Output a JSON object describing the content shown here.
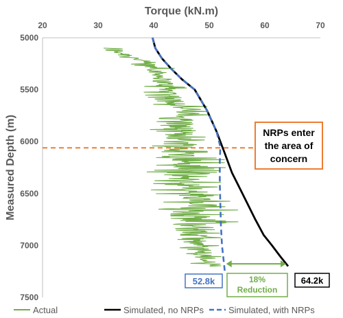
{
  "chart_data": {
    "type": "line",
    "title": "",
    "xlabel": "Torque (kN.m)",
    "ylabel": "Measured Depth (m)",
    "xlim": [
      20,
      70
    ],
    "ylim": [
      5000,
      7500
    ],
    "y_inverted": true,
    "x_axis_position": "top",
    "x_ticks": [
      "20",
      "30",
      "40",
      "50",
      "60",
      "70"
    ],
    "y_ticks": [
      "5000",
      "5500",
      "6000",
      "6500",
      "7000",
      "7500"
    ],
    "grid": false,
    "legend_position": "bottom",
    "colors": {
      "actual": "#70ad47",
      "no_nrps": "#000000",
      "with_nrps": "#4472c4",
      "threshold": "#ed7d31",
      "reduction": "#70ad47"
    },
    "series": [
      {
        "name": "Actual",
        "band": {
          "depth": [
            5100,
            5200,
            5300,
            5400,
            5500,
            5600,
            5700,
            5800,
            5900,
            6000,
            6100,
            6200,
            6300,
            6400,
            6500,
            6600,
            6700,
            6800,
            6900,
            7000,
            7100,
            7200
          ],
          "low": [
            27,
            34,
            37,
            38,
            38,
            39,
            41,
            39,
            38,
            40,
            36,
            39,
            37,
            38,
            40,
            39,
            39,
            40,
            41,
            43,
            45,
            47
          ],
          "high": [
            37,
            40,
            44,
            45,
            47,
            48,
            51,
            51,
            50,
            51,
            53,
            53,
            54,
            53,
            54,
            56,
            55,
            56,
            53,
            52,
            53,
            55
          ]
        }
      },
      {
        "name": "Simulated, no NRPs",
        "x": [
          39.8,
          40.3,
          41.5,
          43.2,
          45.1,
          47.4,
          49.6,
          51.3,
          52.7,
          54.1,
          55.5,
          56.9,
          58.3,
          59.8,
          61.3,
          62.7,
          64.2
        ],
        "y": [
          5000,
          5100,
          5200,
          5300,
          5400,
          5500,
          5700,
          5900,
          6100,
          6300,
          6450,
          6600,
          6750,
          6900,
          7000,
          7100,
          7200
        ]
      },
      {
        "name": "Simulated, with NRPs",
        "x": [
          39.8,
          40.3,
          41.5,
          43.2,
          45.1,
          47.4,
          49.6,
          51.3,
          52.0,
          51.9,
          51.9,
          52.0,
          52.1,
          52.2,
          52.3,
          52.5,
          52.7,
          52.8
        ],
        "y": [
          5000,
          5100,
          5200,
          5300,
          5400,
          5500,
          5700,
          5900,
          6050,
          6200,
          6400,
          6600,
          6800,
          6900,
          7000,
          7100,
          7200,
          7250
        ]
      }
    ],
    "threshold_depth": 6060,
    "annotations": {
      "threshold_label": "NRPs enter the area of concern",
      "threshold_lines": [
        "NRPs enter",
        "the area of",
        "concern"
      ],
      "with_nrps_value": "52.8k",
      "no_nrps_value": "64.2k",
      "reduction_lines": [
        "18%",
        "Reduction"
      ],
      "reduction_from": 52.8,
      "reduction_to": 64.2,
      "reduction_depth": 7230
    }
  }
}
